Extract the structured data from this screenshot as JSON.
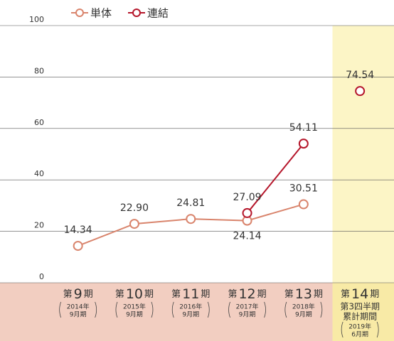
{
  "chart_data": {
    "type": "line",
    "categories": [
      {
        "prefix": "第",
        "number": "9",
        "suffix": "期",
        "period": [
          "2014年",
          "9月期"
        ]
      },
      {
        "prefix": "第",
        "number": "10",
        "suffix": "期",
        "period": [
          "2015年",
          "9月期"
        ]
      },
      {
        "prefix": "第",
        "number": "11",
        "suffix": "期",
        "period": [
          "2016年",
          "9月期"
        ]
      },
      {
        "prefix": "第",
        "number": "12",
        "suffix": "期",
        "period": [
          "2017年",
          "9月期"
        ]
      },
      {
        "prefix": "第",
        "number": "13",
        "suffix": "期",
        "period": [
          "2018年",
          "9月期"
        ]
      },
      {
        "prefix": "第",
        "number": "14",
        "suffix": "期",
        "notes": [
          "第3四半期",
          "累計期間"
        ],
        "period": [
          "2019年",
          "6月期"
        ]
      }
    ],
    "series": [
      {
        "name": "単体",
        "color": "#d9846c",
        "values": [
          14.34,
          22.9,
          24.81,
          24.14,
          30.51,
          null
        ],
        "value_labels": [
          "14.34",
          "22.90",
          "24.81",
          "24.14",
          "30.51",
          null
        ]
      },
      {
        "name": "連結",
        "color": "#b5162b",
        "values": [
          null,
          null,
          null,
          27.09,
          54.11,
          74.54
        ],
        "value_labels": [
          null,
          null,
          null,
          "27.09",
          "54.11",
          "74.54"
        ]
      }
    ],
    "ylim": [
      0,
      100
    ],
    "yticks": [
      0,
      20,
      40,
      60,
      80,
      100
    ],
    "grid": true,
    "highlight_category": 5,
    "legend": "top"
  }
}
